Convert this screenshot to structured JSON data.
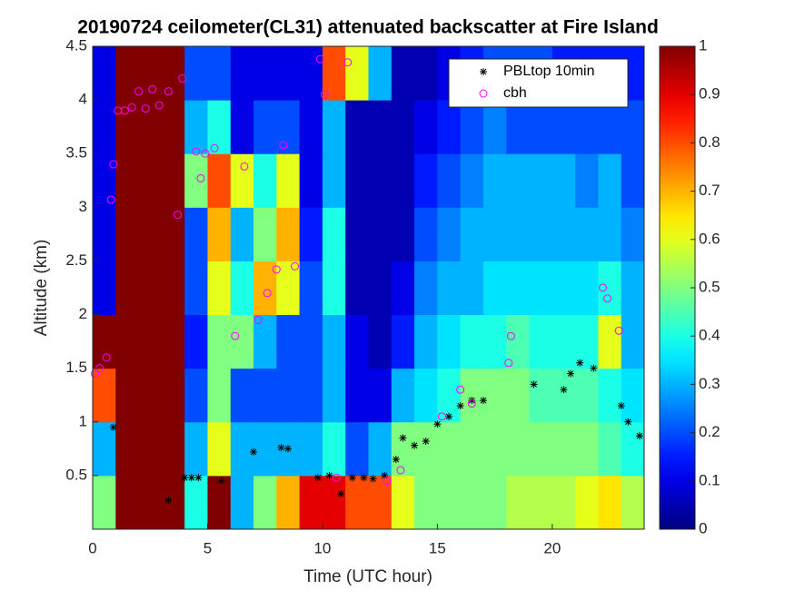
{
  "chart_data": {
    "type": "heatmap",
    "title": "20190724 ceilometer(CL31) attenuated backscatter at Fire Island",
    "x_label": "Time (UTC hour)",
    "y_label": "Altitude (km)",
    "xlim": [
      0,
      24
    ],
    "xticks": [
      0,
      5,
      10,
      15,
      20
    ],
    "ylim": [
      0,
      4.5
    ],
    "yticks": [
      0.5,
      1,
      1.5,
      2,
      2.5,
      3,
      3.5,
      4,
      4.5
    ],
    "colormap": "jet",
    "clim": [
      0,
      1
    ],
    "colorbar_ticks": [
      0,
      0.1,
      0.2,
      0.3,
      0.4,
      0.5,
      0.6,
      0.7,
      0.8,
      0.9,
      1
    ],
    "x_edges": [
      0,
      1,
      2,
      3,
      4,
      5,
      6,
      7,
      8,
      9,
      10,
      11,
      12,
      13,
      14,
      15,
      16,
      17,
      18,
      19,
      20,
      21,
      22,
      23,
      24
    ],
    "y_edges": [
      0,
      0.5,
      1,
      1.5,
      2,
      2.5,
      3,
      3.5,
      4,
      4.5
    ],
    "z": [
      [
        0.5,
        1,
        1,
        1,
        0.4,
        1,
        0.3,
        0.5,
        0.7,
        0.9,
        0.9,
        0.8,
        0.8,
        0.6,
        0.5,
        0.5,
        0.5,
        0.5,
        0.55,
        0.55,
        0.55,
        0.6,
        0.65,
        0.55
      ],
      [
        0.3,
        1,
        1,
        1,
        0.3,
        0.6,
        0.3,
        0.3,
        0.3,
        0.3,
        0.4,
        0.2,
        0.3,
        0.5,
        0.5,
        0.5,
        0.5,
        0.5,
        0.5,
        0.5,
        0.5,
        0.5,
        0.45,
        0.4
      ],
      [
        0.8,
        1,
        1,
        1,
        0.2,
        0.5,
        0.2,
        0.2,
        0.2,
        0.2,
        0.3,
        0.1,
        0.1,
        0.3,
        0.35,
        0.4,
        0.5,
        0.5,
        0.5,
        0.45,
        0.45,
        0.45,
        0.4,
        0.35
      ],
      [
        1,
        1,
        1,
        1,
        0.15,
        0.5,
        0.5,
        0.3,
        0.2,
        0.2,
        0.3,
        0.1,
        0.05,
        0.15,
        0.3,
        0.35,
        0.4,
        0.4,
        0.45,
        0.4,
        0.4,
        0.4,
        0.6,
        0.3
      ],
      [
        0.1,
        1,
        1,
        1,
        0.2,
        0.6,
        0.4,
        0.7,
        0.6,
        0.2,
        0.4,
        0.05,
        0.05,
        0.1,
        0.25,
        0.3,
        0.3,
        0.35,
        0.35,
        0.35,
        0.35,
        0.35,
        0.4,
        0.3
      ],
      [
        0.1,
        1,
        1,
        1,
        0.2,
        0.7,
        0.3,
        0.5,
        0.7,
        0.15,
        0.4,
        0.05,
        0.05,
        0.05,
        0.2,
        0.25,
        0.3,
        0.3,
        0.3,
        0.3,
        0.3,
        0.3,
        0.3,
        0.25
      ],
      [
        0.1,
        1,
        1,
        1,
        0.5,
        0.8,
        0.6,
        0.4,
        0.6,
        0.1,
        0.3,
        0.05,
        0.05,
        0.05,
        0.15,
        0.2,
        0.25,
        0.3,
        0.3,
        0.3,
        0.3,
        0.25,
        0.3,
        0.2
      ],
      [
        0.1,
        1,
        1,
        1,
        0.3,
        0.4,
        0.1,
        0.2,
        0.2,
        0.1,
        0.3,
        0.05,
        0.05,
        0.05,
        0.1,
        0.15,
        0.2,
        0.25,
        0.2,
        0.2,
        0.2,
        0.2,
        0.2,
        0.2
      ],
      [
        0.1,
        1,
        1,
        1,
        0.2,
        0.2,
        0.1,
        0.1,
        0.1,
        0.1,
        0.8,
        0.6,
        0.3,
        0.05,
        0.05,
        0.1,
        0.15,
        0.2,
        0.2,
        0.2,
        0.15,
        0.15,
        0.15,
        0.15
      ]
    ],
    "series": [
      {
        "name": "PBLtop 10min",
        "color": "#000000",
        "marker": "asterisk",
        "x": [
          0.9,
          3.3,
          4,
          4.3,
          4.6,
          5.6,
          7,
          8.2,
          8.5,
          9.8,
          10.3,
          10.8,
          11.3,
          11.8,
          12.2,
          12.7,
          13.2,
          13.5,
          14,
          14.5,
          15,
          15.5,
          16,
          16.5,
          17,
          19.2,
          20.5,
          20.8,
          21.2,
          21.8,
          23,
          23.3,
          23.8
        ],
        "y": [
          0.95,
          0.27,
          0.48,
          0.48,
          0.48,
          0.45,
          0.72,
          0.76,
          0.75,
          0.48,
          0.5,
          0.33,
          0.48,
          0.48,
          0.47,
          0.5,
          0.65,
          0.85,
          0.78,
          0.82,
          0.98,
          1.05,
          1.15,
          1.2,
          1.2,
          1.35,
          1.3,
          1.45,
          1.55,
          1.5,
          1.15,
          1,
          0.87
        ]
      },
      {
        "name": "cbh",
        "color": "#ff00ff",
        "marker": "circle",
        "x": [
          0.1,
          0.3,
          0.6,
          0.8,
          0.9,
          1.1,
          1.4,
          1.7,
          2,
          2.3,
          2.6,
          2.9,
          3.3,
          3.9,
          3.7,
          4.5,
          4.9,
          5.3,
          4.7,
          6.6,
          6.2,
          7.2,
          7.6,
          8,
          8.3,
          8.8,
          9.9,
          10.1,
          10.6,
          11.1,
          12.8,
          13.4,
          15.2,
          16,
          16.5,
          18.2,
          18.1,
          22.2,
          22.4,
          22.9
        ],
        "y": [
          1.45,
          1.5,
          1.6,
          3.07,
          3.4,
          3.9,
          3.9,
          3.93,
          4.08,
          3.92,
          4.1,
          3.95,
          4.08,
          4.2,
          2.93,
          3.52,
          3.5,
          3.55,
          3.27,
          3.38,
          1.8,
          1.95,
          2.2,
          2.42,
          3.58,
          2.45,
          4.38,
          4.05,
          0.48,
          4.35,
          0.45,
          0.55,
          1.05,
          1.3,
          1.17,
          1.8,
          1.55,
          2.25,
          2.15,
          1.85
        ]
      }
    ],
    "legend": "northeast"
  }
}
